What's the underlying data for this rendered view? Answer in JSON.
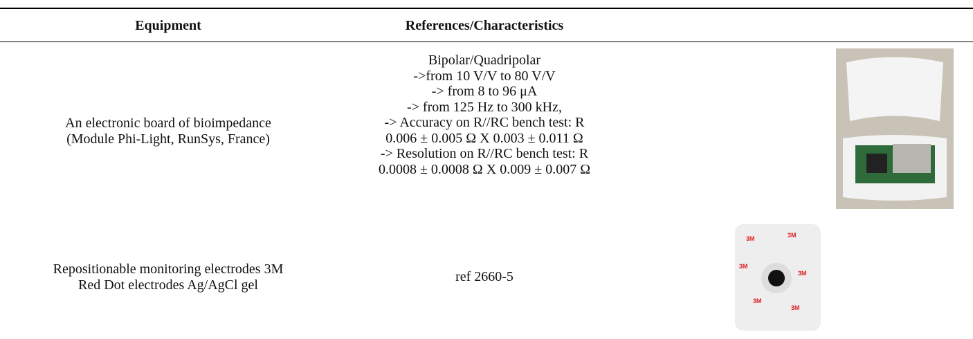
{
  "table": {
    "header": [
      "Equipment",
      "References/Characteristics"
    ],
    "rows": [
      {
        "equipment": [
          "An electronic board of bioimpedance",
          "(Module Phi-Light, RunSys, France)"
        ],
        "characteristics": [
          "Bipolar/Quadripolar",
          "->from 10 V/V to 80 V/V",
          "-> from 8 to 96 μA",
          "-> from 125 Hz to 300 kHz,",
          "-> Accuracy on R//RC bench test: R",
          "0.006 ± 0.005 Ω X 0.003 ± 0.011 Ω",
          "-> Resolution on R//RC bench test: R",
          "0.0008 ± 0.0008 Ω X 0.009 ± 0.007 Ω"
        ]
      },
      {
        "equipment": [
          "Repositionable monitoring electrodes 3M",
          "Red Dot electrodes Ag/AgCl gel"
        ],
        "characteristics": [
          "ref 2660-5"
        ]
      }
    ]
  }
}
